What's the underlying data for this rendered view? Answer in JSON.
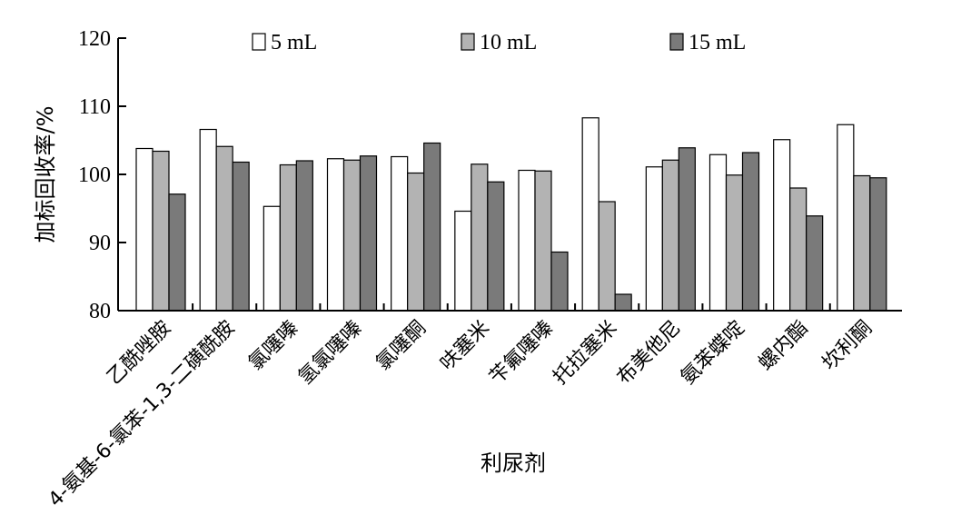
{
  "chart_data": {
    "type": "bar",
    "categories": [
      "乙酰唑胺",
      "4-氨基-6-氯苯-1,3-二磺酰胺",
      "氯噻嗪",
      "氢氯噻嗪",
      "氯噻酮",
      "呋塞米",
      "苄氟噻嗪",
      "托拉塞米",
      "布美他尼",
      "氨苯蝶啶",
      "螺内酯",
      "坎利酮"
    ],
    "series": [
      {
        "name": "5 mL",
        "color": "#ffffff",
        "values": [
          103.8,
          106.6,
          95.3,
          102.3,
          102.6,
          94.6,
          100.6,
          108.3,
          101.1,
          102.9,
          105.1,
          107.3
        ]
      },
      {
        "name": "10 mL",
        "color": "#b3b3b3",
        "values": [
          103.4,
          104.1,
          101.4,
          102.1,
          100.2,
          101.5,
          100.5,
          96.0,
          102.1,
          99.9,
          98.0,
          99.8
        ]
      },
      {
        "name": "15 mL",
        "color": "#7a7a7a",
        "values": [
          97.1,
          101.8,
          102.0,
          102.7,
          104.6,
          98.9,
          88.6,
          82.4,
          103.9,
          103.2,
          93.9,
          99.5
        ]
      }
    ],
    "xlabel": "利尿剂",
    "ylabel": "加标回收率/%",
    "ylim": [
      80,
      120
    ],
    "yticks": [
      80,
      90,
      100,
      110,
      120
    ],
    "grid": false,
    "legend_position": "top"
  }
}
